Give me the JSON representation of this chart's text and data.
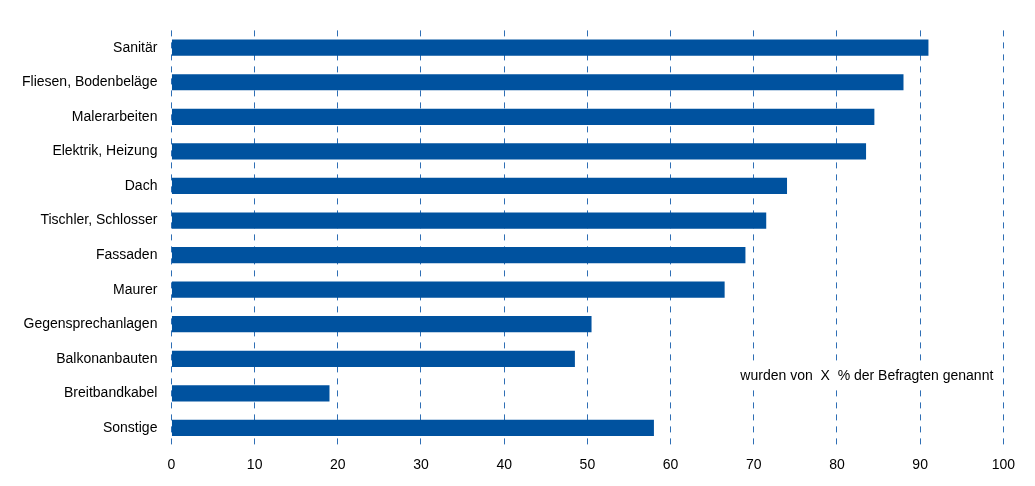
{
  "chart_data": {
    "type": "bar",
    "orientation": "horizontal",
    "categories": [
      "Sanitär",
      "Fliesen, Bodenbeläge",
      "Malerarbeiten",
      "Elektrik, Heizung",
      "Dach",
      "Tischler, Schlosser",
      "Fassaden",
      "Maurer",
      "Gegensprechanlagen",
      "Balkonanbauten",
      "Breitbandkabel",
      "Sonstige"
    ],
    "values": [
      91,
      88,
      84.5,
      83.5,
      74,
      71.5,
      69,
      66.5,
      50.5,
      48.5,
      19,
      58
    ],
    "color": "#00529f",
    "xlim": [
      0,
      100
    ],
    "xticks": [
      0,
      10,
      20,
      30,
      40,
      50,
      60,
      70,
      80,
      90,
      100
    ],
    "grid": "x",
    "legend": false,
    "annotations": [
      "wurden von  X  % der Befragten genannt"
    ]
  }
}
